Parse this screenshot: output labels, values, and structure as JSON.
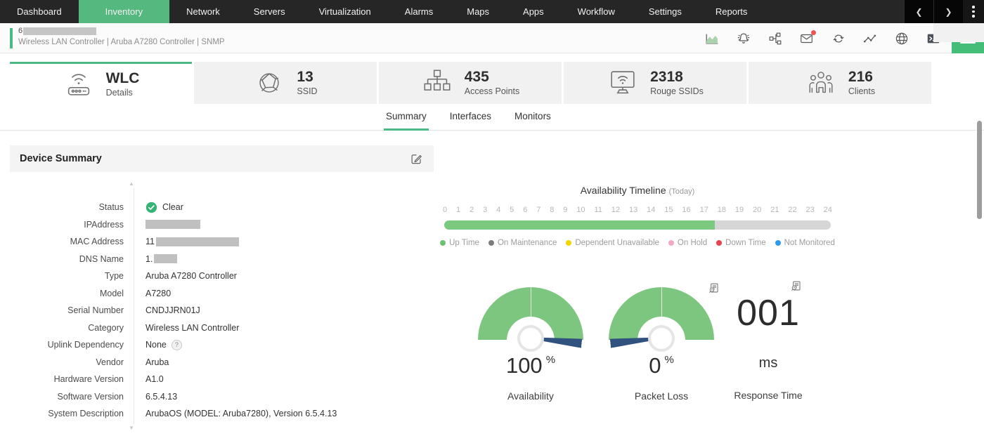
{
  "nav": {
    "items": [
      {
        "label": "Dashboard",
        "active": false
      },
      {
        "label": "Inventory",
        "active": true
      },
      {
        "label": "Network",
        "active": false
      },
      {
        "label": "Servers",
        "active": false
      },
      {
        "label": "Virtualization",
        "active": false
      },
      {
        "label": "Alarms",
        "active": false
      },
      {
        "label": "Maps",
        "active": false
      },
      {
        "label": "Apps",
        "active": false
      },
      {
        "label": "Workflow",
        "active": false
      },
      {
        "label": "Settings",
        "active": false
      },
      {
        "label": "Reports",
        "active": false
      }
    ]
  },
  "device_header": {
    "device_name_redacted": true,
    "device_name_visible_prefix": "6",
    "subtitle": "Wireless LAN Controller | Aruba A7280 Controller  | SNMP",
    "toolbar_icons": [
      {
        "name": "performance-graph-icon",
        "has_badge": false
      },
      {
        "name": "alarm-bell-icon",
        "has_badge": false
      },
      {
        "name": "topology-icon",
        "has_badge": false
      },
      {
        "name": "mail-icon",
        "has_badge": true
      },
      {
        "name": "link-loop-icon",
        "has_badge": false
      },
      {
        "name": "sparkline-icon",
        "has_badge": false
      },
      {
        "name": "globe-icon",
        "has_badge": false
      },
      {
        "name": "terminal-icon",
        "has_badge": false
      }
    ]
  },
  "stat_cards": [
    {
      "icon": "wlc-router-icon",
      "value": "WLC",
      "label": "Details",
      "active": true
    },
    {
      "icon": "ssid-sphere-icon",
      "value": "13",
      "label": "SSID",
      "active": false
    },
    {
      "icon": "access-points-icon",
      "value": "435",
      "label": "Access Points",
      "active": false
    },
    {
      "icon": "rogue-ssid-monitor-icon",
      "value": "2318",
      "label": "Rouge SSIDs",
      "active": false
    },
    {
      "icon": "clients-icon",
      "value": "216",
      "label": "Clients",
      "active": false
    }
  ],
  "tabs": [
    {
      "label": "Summary",
      "active": true
    },
    {
      "label": "Interfaces",
      "active": false
    },
    {
      "label": "Monitors",
      "active": false
    }
  ],
  "device_summary": {
    "title": "Device Summary",
    "fields": [
      {
        "label": "Status",
        "value": "Clear",
        "type": "status"
      },
      {
        "label": "IPAddress",
        "value": "",
        "type": "redacted",
        "redact_width": 78
      },
      {
        "label": "MAC Address",
        "value": "11",
        "type": "redacted",
        "redact_width": 118
      },
      {
        "label": "DNS Name",
        "value": "1.",
        "type": "redacted",
        "redact_width": 33
      },
      {
        "label": "Type",
        "value": "Aruba A7280 Controller",
        "type": "text"
      },
      {
        "label": "Model",
        "value": "A7280",
        "type": "text"
      },
      {
        "label": "Serial Number",
        "value": "CNDJJRN01J",
        "type": "text"
      },
      {
        "label": "Category",
        "value": "Wireless LAN Controller",
        "type": "text"
      },
      {
        "label": "Uplink Dependency",
        "value": "None",
        "type": "help"
      },
      {
        "label": "Vendor",
        "value": "Aruba",
        "type": "text"
      },
      {
        "label": "Hardware Version",
        "value": "A1.0",
        "type": "text"
      },
      {
        "label": "Software Version",
        "value": "6.5.4.13",
        "type": "text"
      },
      {
        "label": "System Description",
        "value": "ArubaOS (MODEL: Aruba7280), Version 6.5.4.13",
        "type": "text"
      }
    ]
  },
  "availability_timeline": {
    "title": "Availability Timeline",
    "subtitle": "(Today)",
    "hours": [
      "0",
      "1",
      "2",
      "3",
      "4",
      "5",
      "6",
      "7",
      "8",
      "9",
      "10",
      "11",
      "12",
      "13",
      "14",
      "15",
      "16",
      "17",
      "18",
      "19",
      "20",
      "21",
      "22",
      "23",
      "24"
    ],
    "up_time_percent": 70,
    "up_color": "#7bc97f",
    "remainder_color": "#d6d6d6",
    "legend": [
      {
        "label": "Up Time",
        "color": "#6cc16f"
      },
      {
        "label": "On Maintenance",
        "color": "#7d7d7d"
      },
      {
        "label": "Dependent Unavailable",
        "color": "#f2d600"
      },
      {
        "label": "On Hold",
        "color": "#f5a8c0"
      },
      {
        "label": "Down Time",
        "color": "#e8434e"
      },
      {
        "label": "Not Monitored",
        "color": "#2e9bf0"
      }
    ]
  },
  "metrics": {
    "gauges": [
      {
        "label": "Availability",
        "value": "100",
        "unit": "%",
        "percent": 100
      },
      {
        "label": "Packet Loss",
        "value": "0",
        "unit": "%",
        "percent": 0
      }
    ],
    "response_time": {
      "label": "Response Time",
      "value": "001",
      "unit": "ms"
    }
  }
}
